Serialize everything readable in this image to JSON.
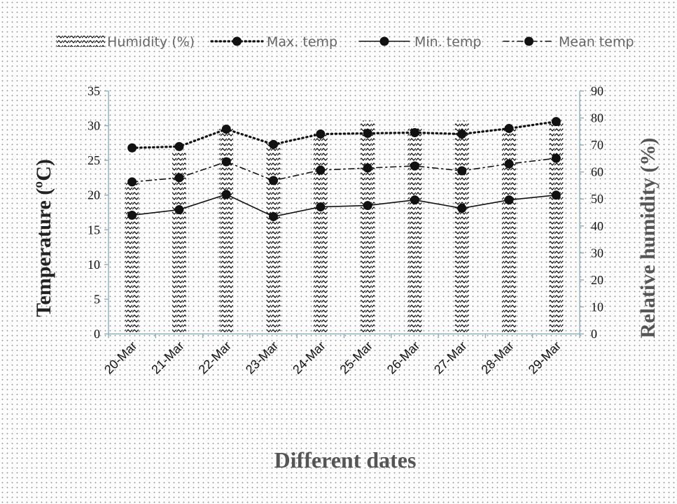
{
  "chart_data": {
    "type": "bar",
    "categories": [
      "20-Mar",
      "21-Mar",
      "22-Mar",
      "23-Mar",
      "24-Mar",
      "25-Mar",
      "26-Mar",
      "27-Mar",
      "28-Mar",
      "29-Mar"
    ],
    "series": [
      {
        "name": "Humidity (%)",
        "type": "bar",
        "axis": "right",
        "pattern": "hatch",
        "values": [
          56,
          68,
          76,
          71,
          75,
          79,
          77,
          79,
          76,
          79
        ]
      },
      {
        "name": "Max. temp",
        "type": "line",
        "axis": "left",
        "dash": "dotted",
        "values": [
          26.8,
          27.0,
          29.5,
          27.3,
          28.8,
          28.9,
          29.0,
          28.8,
          29.6,
          30.6
        ]
      },
      {
        "name": "Min. temp",
        "type": "line",
        "axis": "left",
        "dash": "solid",
        "values": [
          17.1,
          17.9,
          20.1,
          16.9,
          18.3,
          18.5,
          19.3,
          18.1,
          19.3,
          20.0
        ]
      },
      {
        "name": "Mean temp",
        "type": "line",
        "axis": "left",
        "dash": "dash-dot",
        "values": [
          21.9,
          22.5,
          24.8,
          22.1,
          23.6,
          23.9,
          24.2,
          23.5,
          24.5,
          25.3
        ]
      }
    ],
    "xlabel": "Different dates",
    "ylabel": "Temperature (ºC)",
    "y2label": "Relative humidity (%)",
    "ylim": [
      0,
      35
    ],
    "yticks": [
      0,
      5,
      10,
      15,
      20,
      25,
      30,
      35
    ],
    "y2lim": [
      0,
      90
    ],
    "y2ticks": [
      0,
      10,
      20,
      30,
      40,
      50,
      60,
      70,
      80,
      90
    ],
    "legend_position": "top",
    "grid": false,
    "colors": {
      "axis": "#8fb2c4",
      "line": "#111111",
      "bar_hatch": "#111111",
      "background": "#ffffff"
    }
  }
}
